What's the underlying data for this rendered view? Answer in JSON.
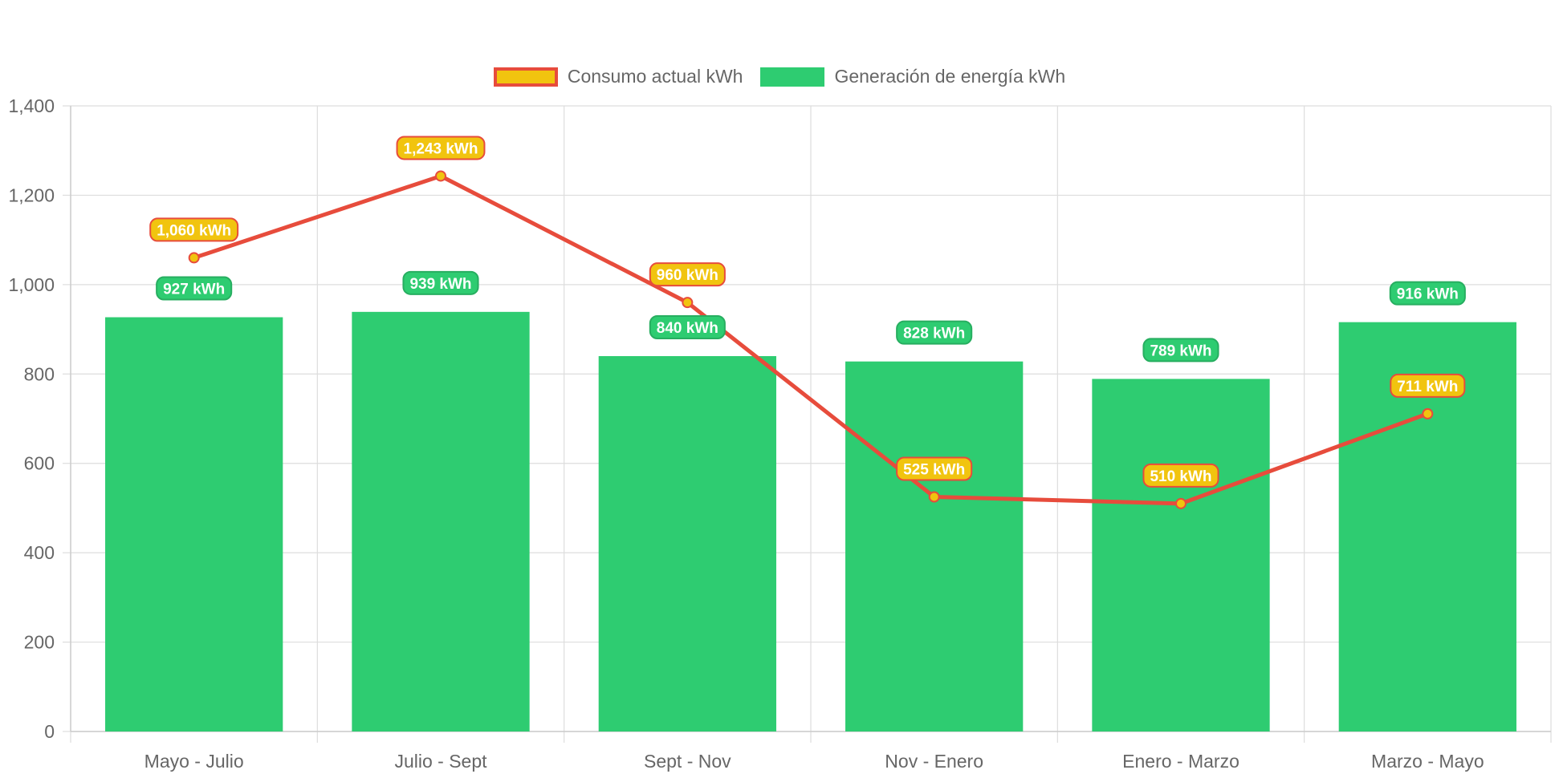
{
  "chart_data": {
    "type": "bar",
    "categories": [
      "Mayo - Julio",
      "Julio - Sept",
      "Sept - Nov",
      "Nov - Enero",
      "Enero - Marzo",
      "Marzo - Mayo"
    ],
    "series": [
      {
        "name": "Consumo actual kWh",
        "render": "line",
        "values": [
          1060,
          1243,
          960,
          525,
          510,
          711
        ],
        "labels": [
          "1,060 kWh",
          "1,243 kWh",
          "960 kWh",
          "525 kWh",
          "510 kWh",
          "711 kWh"
        ],
        "color": "#e74c3c",
        "fill": "#f1c40f"
      },
      {
        "name": "Generación de energía kWh",
        "render": "bar",
        "values": [
          927,
          939,
          840,
          828,
          789,
          916
        ],
        "labels": [
          "927 kWh",
          "939 kWh",
          "840 kWh",
          "828 kWh",
          "789 kWh",
          "916 kWh"
        ],
        "color": "#2ecc71",
        "fill": "#2ecc71"
      }
    ],
    "title": "",
    "xlabel": "",
    "ylabel": "",
    "ylim": [
      0,
      1400
    ],
    "yticks": [
      0,
      200,
      400,
      600,
      800,
      1000,
      1200,
      1400
    ],
    "ytick_labels": [
      "0",
      "200",
      "400",
      "600",
      "800",
      "1,000",
      "1,200",
      "1,400"
    ],
    "grid": true,
    "legend": "top-center"
  }
}
